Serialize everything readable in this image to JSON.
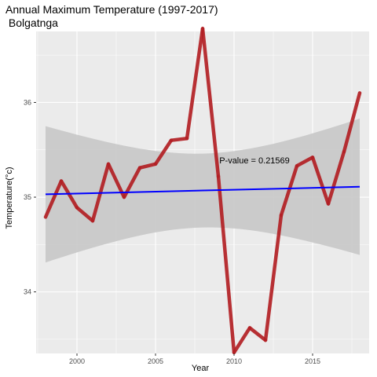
{
  "chart_data": {
    "type": "line",
    "title": "Annual Maximum Temperature (1997-2017)",
    "subtitle": " Bolgatnga",
    "xlabel": "Year",
    "ylabel": "Temperature(°c)",
    "xlim": [
      1997.4,
      2018.6
    ],
    "ylim": [
      33.35,
      36.75
    ],
    "x_ticks": [
      2000,
      2005,
      2010,
      2015
    ],
    "y_ticks": [
      34,
      35,
      36
    ],
    "grid": true,
    "series": [
      {
        "x": [
          1998,
          1999,
          2000,
          2001,
          2002,
          2003,
          2004,
          2005,
          2006,
          2007,
          2008,
          2009,
          2010,
          2011,
          2012,
          2013,
          2014,
          2015,
          2016,
          2017,
          2018
        ],
        "values": [
          34.79,
          35.17,
          34.89,
          34.75,
          35.35,
          35.0,
          35.31,
          35.35,
          35.6,
          35.62,
          36.78,
          35.22,
          33.36,
          33.62,
          33.49,
          34.81,
          35.33,
          35.42,
          34.93,
          35.48,
          36.1
        ]
      }
    ],
    "trend": {
      "x": [
        1998,
        2018
      ],
      "values": [
        35.03,
        35.11
      ],
      "color": "#0000ff",
      "ci_upper": [
        35.76,
        35.82
      ],
      "ci_lower": [
        34.3,
        34.38
      ],
      "ci_waist": [
        34.7,
        35.48
      ],
      "ci_color": "#c8c8c8"
    },
    "annotation": {
      "text": "P-value = 0.21569",
      "x": 2011.3,
      "y": 35.3
    },
    "colors": {
      "line": "#b21f24",
      "panel": "#ebebeb",
      "grid": "#ffffff"
    }
  }
}
